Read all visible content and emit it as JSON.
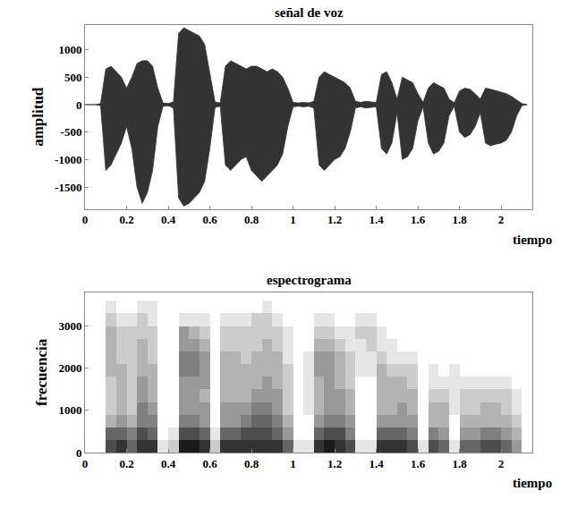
{
  "chart_data": [
    {
      "type": "area",
      "title": "señal de voz",
      "x_label": "tiempo",
      "y_label": "amplitud",
      "x": [
        0,
        0.025,
        0.05,
        0.075,
        0.1,
        0.125,
        0.15,
        0.175,
        0.2,
        0.225,
        0.25,
        0.275,
        0.3,
        0.325,
        0.35,
        0.375,
        0.4,
        0.425,
        0.45,
        0.475,
        0.5,
        0.525,
        0.55,
        0.575,
        0.6,
        0.625,
        0.65,
        0.675,
        0.7,
        0.725,
        0.75,
        0.775,
        0.8,
        0.825,
        0.85,
        0.875,
        0.9,
        0.925,
        0.95,
        0.975,
        1.0,
        1.025,
        1.05,
        1.075,
        1.1,
        1.125,
        1.15,
        1.175,
        1.2,
        1.225,
        1.25,
        1.275,
        1.3,
        1.325,
        1.35,
        1.375,
        1.4,
        1.425,
        1.45,
        1.475,
        1.5,
        1.525,
        1.55,
        1.575,
        1.6,
        1.625,
        1.65,
        1.675,
        1.7,
        1.725,
        1.75,
        1.775,
        1.8,
        1.825,
        1.85,
        1.875,
        1.9,
        1.925,
        1.95,
        1.975,
        2.0,
        2.025,
        2.05,
        2.075,
        2.1,
        2.125
      ],
      "series": [
        {
          "color": "#333333",
          "values": [
            0,
            0,
            0,
            20,
            650,
            700,
            600,
            500,
            300,
            500,
            750,
            800,
            800,
            700,
            300,
            30,
            20,
            50,
            1300,
            1400,
            1350,
            1300,
            1250,
            1100,
            600,
            50,
            30,
            700,
            800,
            750,
            700,
            650,
            700,
            700,
            650,
            600,
            650,
            600,
            500,
            300,
            40,
            30,
            40,
            30,
            60,
            500,
            600,
            550,
            500,
            450,
            400,
            300,
            60,
            40,
            60,
            50,
            40,
            550,
            600,
            400,
            100,
            500,
            450,
            400,
            200,
            40,
            300,
            400,
            350,
            300,
            100,
            30,
            250,
            300,
            280,
            200,
            100,
            300,
            280,
            250,
            220,
            200,
            150,
            80,
            20,
            0
          ]
        },
        {
          "color": "#333333",
          "values": [
            0,
            0,
            0,
            -20,
            -1200,
            -1100,
            -900,
            -700,
            -400,
            -800,
            -1500,
            -1800,
            -1600,
            -1200,
            -400,
            -30,
            -20,
            -60,
            -1700,
            -1850,
            -1800,
            -1700,
            -1600,
            -1400,
            -800,
            -50,
            -30,
            -1100,
            -1200,
            -1100,
            -1000,
            -950,
            -1200,
            -1300,
            -1400,
            -1300,
            -1200,
            -1100,
            -900,
            -400,
            -40,
            -30,
            -40,
            -30,
            -60,
            -1100,
            -1200,
            -1100,
            -1000,
            -950,
            -800,
            -500,
            -60,
            -40,
            -60,
            -50,
            -40,
            -800,
            -900,
            -700,
            -150,
            -1000,
            -950,
            -800,
            -300,
            -40,
            -700,
            -900,
            -850,
            -700,
            -200,
            -30,
            -500,
            -600,
            -550,
            -400,
            -150,
            -700,
            -750,
            -720,
            -700,
            -650,
            -500,
            -200,
            -20,
            0
          ]
        }
      ],
      "xlim": [
        0,
        2.15
      ],
      "xticks": [
        0,
        0.2,
        0.4,
        0.6,
        0.8,
        1,
        1.2,
        1.4,
        1.6,
        1.8,
        2
      ],
      "ylim": [
        -1900,
        1450
      ],
      "yticks": [
        -1500,
        -1000,
        -500,
        0,
        500,
        1000
      ],
      "grid": false
    },
    {
      "type": "heatmap",
      "title": "espectrograma",
      "x_label": "tiempo",
      "y_label": "frecuencia",
      "x": [
        0.025,
        0.075,
        0.125,
        0.175,
        0.225,
        0.275,
        0.325,
        0.375,
        0.425,
        0.475,
        0.525,
        0.575,
        0.625,
        0.675,
        0.725,
        0.775,
        0.825,
        0.875,
        0.925,
        0.975,
        1.025,
        1.075,
        1.125,
        1.175,
        1.225,
        1.275,
        1.325,
        1.375,
        1.425,
        1.475,
        1.525,
        1.575,
        1.625,
        1.675,
        1.725,
        1.775,
        1.825,
        1.875,
        1.925,
        1.975,
        2.025,
        2.075,
        2.125
      ],
      "y": [
        150,
        450,
        750,
        1050,
        1350,
        1650,
        1950,
        2250,
        2550,
        2850,
        3150,
        3450
      ],
      "cells_by_time": [
        [
          0,
          0,
          0,
          0,
          0,
          0,
          0,
          0,
          0,
          0,
          0,
          0
        ],
        [
          0,
          0,
          0,
          0,
          0,
          0,
          0,
          0,
          0,
          0,
          0,
          0
        ],
        [
          7,
          6,
          3,
          2,
          2,
          2,
          3,
          3,
          3,
          3,
          2,
          1
        ],
        [
          8,
          6,
          4,
          3,
          3,
          3,
          3,
          2,
          2,
          2,
          1,
          0
        ],
        [
          6,
          5,
          3,
          2,
          2,
          2,
          2,
          2,
          2,
          2,
          1,
          0
        ],
        [
          8,
          7,
          5,
          5,
          4,
          4,
          3,
          3,
          3,
          2,
          2,
          1
        ],
        [
          8,
          6,
          5,
          4,
          3,
          3,
          3,
          2,
          2,
          2,
          1,
          1
        ],
        [
          1,
          0,
          0,
          0,
          0,
          0,
          0,
          0,
          0,
          0,
          0,
          0
        ],
        [
          2,
          1,
          0,
          0,
          0,
          0,
          0,
          0,
          0,
          0,
          0,
          0
        ],
        [
          9,
          7,
          5,
          4,
          4,
          4,
          5,
          5,
          4,
          4,
          1,
          0
        ],
        [
          9,
          7,
          5,
          4,
          4,
          4,
          5,
          5,
          4,
          3,
          1,
          0
        ],
        [
          8,
          6,
          4,
          4,
          3,
          4,
          4,
          4,
          3,
          2,
          1,
          0
        ],
        [
          2,
          1,
          0,
          0,
          0,
          0,
          0,
          0,
          0,
          0,
          0,
          0
        ],
        [
          8,
          6,
          4,
          4,
          3,
          3,
          3,
          3,
          2,
          2,
          1,
          0
        ],
        [
          8,
          6,
          4,
          4,
          3,
          3,
          3,
          3,
          2,
          2,
          1,
          0
        ],
        [
          8,
          7,
          5,
          4,
          3,
          3,
          3,
          2,
          2,
          2,
          1,
          0
        ],
        [
          8,
          7,
          6,
          5,
          4,
          3,
          3,
          3,
          2,
          2,
          2,
          0
        ],
        [
          8,
          7,
          6,
          5,
          4,
          4,
          3,
          3,
          3,
          2,
          2,
          1
        ],
        [
          8,
          6,
          5,
          4,
          4,
          3,
          3,
          3,
          2,
          2,
          1,
          0
        ],
        [
          6,
          4,
          3,
          2,
          2,
          2,
          2,
          1,
          1,
          1,
          0,
          0
        ],
        [
          1,
          0,
          0,
          0,
          0,
          0,
          0,
          0,
          0,
          0,
          0,
          0
        ],
        [
          1,
          0,
          0,
          1,
          1,
          1,
          1,
          1,
          0,
          0,
          0,
          0
        ],
        [
          8,
          6,
          4,
          3,
          3,
          3,
          4,
          4,
          3,
          2,
          1,
          0
        ],
        [
          9,
          7,
          5,
          4,
          4,
          4,
          4,
          4,
          3,
          2,
          1,
          0
        ],
        [
          8,
          7,
          5,
          4,
          4,
          3,
          3,
          3,
          2,
          1,
          0,
          0
        ],
        [
          7,
          5,
          4,
          3,
          3,
          2,
          2,
          2,
          1,
          1,
          0,
          0
        ],
        [
          1,
          0,
          0,
          0,
          0,
          0,
          1,
          1,
          1,
          2,
          1,
          0
        ],
        [
          1,
          0,
          0,
          0,
          0,
          0,
          1,
          1,
          2,
          2,
          1,
          0
        ],
        [
          8,
          6,
          4,
          3,
          3,
          3,
          3,
          2,
          1,
          1,
          0,
          0
        ],
        [
          8,
          6,
          4,
          3,
          3,
          3,
          2,
          1,
          1,
          0,
          0,
          0
        ],
        [
          8,
          6,
          4,
          4,
          3,
          3,
          2,
          1,
          0,
          0,
          0,
          0
        ],
        [
          7,
          5,
          4,
          3,
          3,
          2,
          2,
          1,
          0,
          0,
          0,
          0
        ],
        [
          1,
          0,
          0,
          0,
          0,
          0,
          0,
          0,
          0,
          0,
          0,
          0
        ],
        [
          7,
          5,
          3,
          3,
          2,
          1,
          1,
          0,
          0,
          0,
          0,
          0
        ],
        [
          6,
          4,
          3,
          3,
          2,
          1,
          0,
          0,
          0,
          0,
          0,
          0
        ],
        [
          1,
          0,
          0,
          1,
          1,
          1,
          1,
          0,
          0,
          0,
          0,
          0
        ],
        [
          6,
          4,
          3,
          2,
          2,
          1,
          0,
          0,
          0,
          0,
          0,
          0
        ],
        [
          6,
          4,
          3,
          2,
          2,
          1,
          0,
          0,
          0,
          0,
          0,
          0
        ],
        [
          7,
          5,
          3,
          3,
          2,
          1,
          0,
          0,
          0,
          0,
          0,
          0
        ],
        [
          7,
          5,
          3,
          3,
          2,
          1,
          0,
          0,
          0,
          0,
          0,
          0
        ],
        [
          6,
          4,
          3,
          2,
          2,
          1,
          0,
          0,
          0,
          0,
          0,
          0
        ],
        [
          4,
          3,
          2,
          1,
          1,
          0,
          0,
          0,
          0,
          0,
          0,
          0
        ],
        [
          0,
          0,
          0,
          0,
          0,
          0,
          0,
          0,
          0,
          0,
          0,
          0
        ]
      ],
      "zlim": [
        0,
        9
      ],
      "colors": [
        "#ffffff",
        "#1a1a1a"
      ],
      "xlim": [
        0,
        2.15
      ],
      "xticks": [
        0,
        0.2,
        0.4,
        0.6,
        0.8,
        1,
        1.2,
        1.4,
        1.6,
        1.8,
        2
      ],
      "ylim": [
        0,
        3800
      ],
      "yticks": [
        0,
        1000,
        2000,
        3000
      ],
      "grid": false
    }
  ]
}
